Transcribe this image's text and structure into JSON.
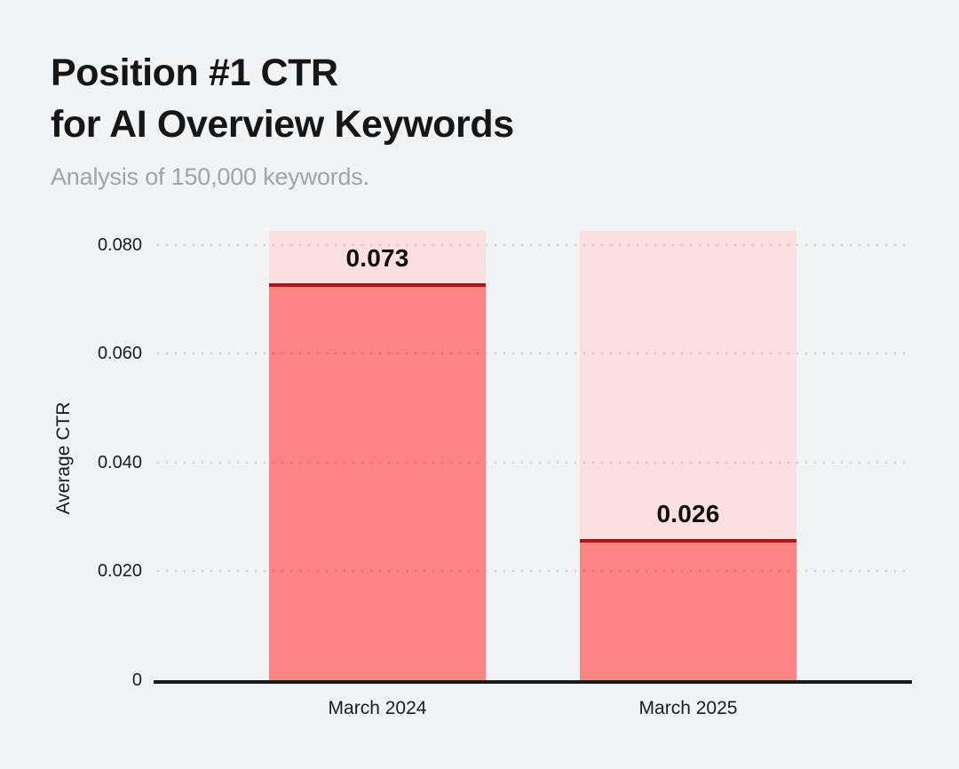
{
  "page": {
    "background": "#f2f3f5",
    "title_line1": "Position #1 CTR",
    "title_line2": "for AI Overview Keywords",
    "subtitle": "Analysis of 150,000 keywords."
  },
  "chart_data": {
    "type": "bar",
    "title": "Position #1 CTR for AI Overview Keywords",
    "subtitle": "Analysis of 150,000 keywords.",
    "ylabel": "Average CTR",
    "categories": [
      "March 2024",
      "March 2025"
    ],
    "values": [
      0.073,
      0.026
    ],
    "value_labels": [
      "0.073",
      "0.026"
    ],
    "yticks": [
      0,
      0.02,
      0.04,
      0.06,
      0.08
    ],
    "ytick_labels": [
      "0",
      "0.020",
      "0.040",
      "0.060",
      "0.080"
    ],
    "ylim": [
      0,
      0.0826
    ],
    "grid": "dotted-horizontal",
    "legend": "none",
    "colors": {
      "background": "#f2f3f5",
      "bar_fill": "#fd8385",
      "bar_backdrop": "#fcdfe1",
      "bar_top_line": "#b11217",
      "axis_line": "#1a1a1a",
      "grid_dot": "rgba(25,25,40,0.14)",
      "title_text": "#161616",
      "subtitle_text": "#a3a3a8"
    }
  }
}
